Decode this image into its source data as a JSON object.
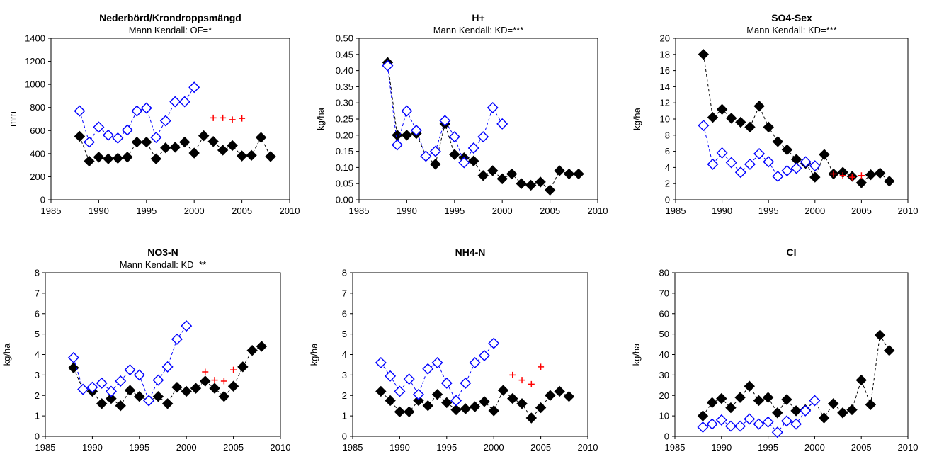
{
  "chart_data": [
    {
      "type": "scatter",
      "title": "Nederbörd/Krondroppsmängd",
      "subtitle": "Mann Kendall: ÖF=*",
      "ylabel": "mm",
      "xlim": [
        1985,
        2010
      ],
      "ylim": [
        0,
        1400
      ],
      "xticks": [
        1985,
        1990,
        1995,
        2000,
        2005,
        2010
      ],
      "yticks": [
        0,
        200,
        400,
        600,
        800,
        1000,
        1200,
        1400
      ],
      "series": [
        {
          "marker": "filled-diamond",
          "color": "#000000",
          "line": "dashed",
          "x": [
            1988,
            1989,
            1990,
            1991,
            1992,
            1993,
            1994,
            1995,
            1996,
            1997,
            1998,
            1999,
            2000,
            2001,
            2002,
            2003,
            2004,
            2005,
            2006,
            2007,
            2008
          ],
          "y": [
            550,
            335,
            370,
            355,
            360,
            370,
            500,
            500,
            355,
            450,
            455,
            500,
            405,
            555,
            505,
            430,
            470,
            380,
            385,
            540,
            375
          ]
        },
        {
          "marker": "open-diamond",
          "color": "#0000ff",
          "line": "dashed",
          "x": [
            1988,
            1989,
            1990,
            1991,
            1992,
            1993,
            1994,
            1995,
            1996,
            1997,
            1998,
            1999,
            2000
          ],
          "y": [
            770,
            500,
            630,
            560,
            535,
            605,
            770,
            795,
            540,
            685,
            850,
            850,
            975
          ]
        },
        {
          "marker": "plus",
          "color": "#ff0000",
          "line": "none",
          "x": [
            2002,
            2003,
            2004,
            2005
          ],
          "y": [
            710,
            710,
            695,
            705
          ]
        }
      ]
    },
    {
      "type": "scatter",
      "title": "H+",
      "subtitle": "Mann Kendall: KD=***",
      "ylabel": "kg/ha",
      "xlim": [
        1985,
        2010
      ],
      "ylim": [
        0,
        0.5
      ],
      "xticks": [
        1985,
        1990,
        1995,
        2000,
        2005,
        2010
      ],
      "yticks": [
        "0.00",
        "0.05",
        "0.10",
        "0.15",
        "0.20",
        "0.25",
        "0.30",
        "0.35",
        "0.40",
        "0.45",
        "0.50"
      ],
      "series": [
        {
          "marker": "filled-diamond",
          "color": "#000000",
          "line": "dashed",
          "x": [
            1988,
            1989,
            1990,
            1991,
            1992,
            1993,
            1994,
            1995,
            1996,
            1997,
            1998,
            1999,
            2000,
            2001,
            2002,
            2003,
            2004,
            2005,
            2006,
            2007,
            2008
          ],
          "y": [
            0.425,
            0.2,
            0.2,
            0.205,
            0.135,
            0.11,
            0.235,
            0.14,
            0.13,
            0.12,
            0.075,
            0.09,
            0.065,
            0.08,
            0.05,
            0.045,
            0.055,
            0.03,
            0.09,
            0.08,
            0.08
          ]
        },
        {
          "marker": "open-diamond",
          "color": "#0000ff",
          "line": "dashed",
          "x": [
            1988,
            1989,
            1990,
            1991,
            1992,
            1993,
            1994,
            1995,
            1996,
            1997,
            1998,
            1999,
            2000
          ],
          "y": [
            0.415,
            0.17,
            0.275,
            0.215,
            0.135,
            0.15,
            0.245,
            0.195,
            0.115,
            0.16,
            0.195,
            0.285,
            0.235
          ]
        }
      ]
    },
    {
      "type": "scatter",
      "title": "SO4-Sex",
      "subtitle": "Mann Kendall: KD=***",
      "ylabel": "kg/ha",
      "xlim": [
        1985,
        2010
      ],
      "ylim": [
        0,
        20
      ],
      "xticks": [
        1985,
        1990,
        1995,
        2000,
        2005,
        2010
      ],
      "yticks": [
        0,
        2,
        4,
        6,
        8,
        10,
        12,
        14,
        16,
        18,
        20
      ],
      "series": [
        {
          "marker": "filled-diamond",
          "color": "#000000",
          "line": "dashed",
          "x": [
            1988,
            1989,
            1990,
            1991,
            1992,
            1993,
            1994,
            1995,
            1996,
            1997,
            1998,
            1999,
            2000,
            2001,
            2002,
            2003,
            2004,
            2005,
            2006,
            2007,
            2008
          ],
          "y": [
            18,
            10.2,
            11.2,
            10.1,
            9.6,
            9,
            11.6,
            9,
            7.2,
            6.2,
            5,
            4.5,
            2.8,
            5.6,
            3.2,
            3.4,
            2.9,
            2.1,
            3.1,
            3.3,
            2.3
          ]
        },
        {
          "marker": "open-diamond",
          "color": "#0000ff",
          "line": "dashed",
          "x": [
            1988,
            1989,
            1990,
            1991,
            1992,
            1993,
            1994,
            1995,
            1996,
            1997,
            1998,
            1999,
            2000
          ],
          "y": [
            9.2,
            4.4,
            5.8,
            4.6,
            3.4,
            4.4,
            5.7,
            4.7,
            2.9,
            3.6,
            3.9,
            4.7,
            4.2
          ]
        },
        {
          "marker": "plus",
          "color": "#ff0000",
          "line": "none",
          "x": [
            2002,
            2003,
            2004,
            2005
          ],
          "y": [
            3.2,
            3,
            2.8,
            3
          ]
        }
      ]
    },
    {
      "type": "scatter",
      "title": "NO3-N",
      "subtitle": "Mann Kendall: KD=**",
      "ylabel": "kg/ha",
      "xlim": [
        1985,
        2010
      ],
      "ylim": [
        0,
        8
      ],
      "xticks": [
        1985,
        1990,
        1995,
        2000,
        2005,
        2010
      ],
      "yticks": [
        0,
        1,
        2,
        3,
        4,
        5,
        6,
        7,
        8
      ],
      "series": [
        {
          "marker": "filled-diamond",
          "color": "#000000",
          "line": "dashed",
          "x": [
            1988,
            1989,
            1990,
            1991,
            1992,
            1993,
            1994,
            1995,
            1996,
            1997,
            1998,
            1999,
            2000,
            2001,
            2002,
            2003,
            2004,
            2005,
            2006,
            2007,
            2008
          ],
          "y": [
            3.35,
            2.3,
            2.2,
            1.6,
            1.85,
            1.5,
            2.25,
            1.95,
            1.75,
            1.95,
            1.6,
            2.4,
            2.2,
            2.35,
            2.7,
            2.35,
            1.95,
            2.45,
            3.4,
            4.2,
            4.4
          ]
        },
        {
          "marker": "open-diamond",
          "color": "#0000ff",
          "line": "dashed",
          "x": [
            1988,
            1989,
            1990,
            1991,
            1992,
            1993,
            1994,
            1995,
            1996,
            1997,
            1998,
            1999,
            2000
          ],
          "y": [
            3.85,
            2.3,
            2.4,
            2.6,
            2.2,
            2.7,
            3.25,
            3,
            1.75,
            2.75,
            3.4,
            4.75,
            5.4
          ]
        },
        {
          "marker": "plus",
          "color": "#ff0000",
          "line": "none",
          "x": [
            2002,
            2003,
            2004,
            2005
          ],
          "y": [
            3.15,
            2.75,
            2.7,
            3.25
          ]
        }
      ]
    },
    {
      "type": "scatter",
      "title": "NH4-N",
      "subtitle": "",
      "ylabel": "kg/ha",
      "xlim": [
        1985,
        2010
      ],
      "ylim": [
        0,
        8
      ],
      "xticks": [
        1985,
        1990,
        1995,
        2000,
        2005,
        2010
      ],
      "yticks": [
        0,
        1,
        2,
        3,
        4,
        5,
        6,
        7,
        8
      ],
      "series": [
        {
          "marker": "filled-diamond",
          "color": "#000000",
          "line": "dashed",
          "x": [
            1988,
            1989,
            1990,
            1991,
            1992,
            1993,
            1994,
            1995,
            1996,
            1997,
            1998,
            1999,
            2000,
            2001,
            2002,
            2003,
            2004,
            2005,
            2006,
            2007,
            2008
          ],
          "y": [
            2.2,
            1.75,
            1.2,
            1.2,
            1.75,
            1.5,
            2.05,
            1.65,
            1.3,
            1.35,
            1.45,
            1.7,
            1.25,
            2.25,
            1.85,
            1.6,
            0.9,
            1.4,
            2,
            2.2,
            1.95
          ]
        },
        {
          "marker": "open-diamond",
          "color": "#0000ff",
          "line": "dashed",
          "x": [
            1988,
            1989,
            1990,
            1991,
            1992,
            1993,
            1994,
            1995,
            1996,
            1997,
            1998,
            1999,
            2000
          ],
          "y": [
            3.6,
            2.95,
            2.2,
            2.8,
            2.05,
            3.3,
            3.6,
            2.6,
            1.75,
            2.6,
            3.6,
            3.95,
            4.55
          ]
        },
        {
          "marker": "plus",
          "color": "#ff0000",
          "line": "none",
          "x": [
            2002,
            2003,
            2004,
            2005
          ],
          "y": [
            3,
            2.75,
            2.55,
            3.4
          ]
        }
      ]
    },
    {
      "type": "scatter",
      "title": "Cl",
      "subtitle": "",
      "ylabel": "kg/ha",
      "xlim": [
        1985,
        2010
      ],
      "ylim": [
        0,
        80
      ],
      "xticks": [
        1985,
        1990,
        1995,
        2000,
        2005,
        2010
      ],
      "yticks": [
        0,
        10,
        20,
        30,
        40,
        50,
        60,
        70,
        80
      ],
      "series": [
        {
          "marker": "filled-diamond",
          "color": "#000000",
          "line": "dashed",
          "x": [
            1988,
            1989,
            1990,
            1991,
            1992,
            1993,
            1994,
            1995,
            1996,
            1997,
            1998,
            1999,
            2000,
            2001,
            2002,
            2003,
            2004,
            2005,
            2006,
            2007,
            2008
          ],
          "y": [
            10,
            16.5,
            18.5,
            14,
            19,
            24.5,
            17.5,
            19,
            11.5,
            18,
            12.5,
            13,
            17.5,
            9,
            16,
            11.5,
            13,
            27.5,
            15.5,
            49.5,
            42
          ]
        },
        {
          "marker": "open-diamond",
          "color": "#0000ff",
          "line": "dashed",
          "x": [
            1988,
            1989,
            1990,
            1991,
            1992,
            1993,
            1994,
            1995,
            1996,
            1997,
            1998,
            1999,
            2000
          ],
          "y": [
            4.5,
            6,
            8,
            5,
            5,
            8.5,
            6,
            7,
            2,
            7.5,
            6,
            12.5,
            17.5
          ]
        }
      ]
    }
  ]
}
